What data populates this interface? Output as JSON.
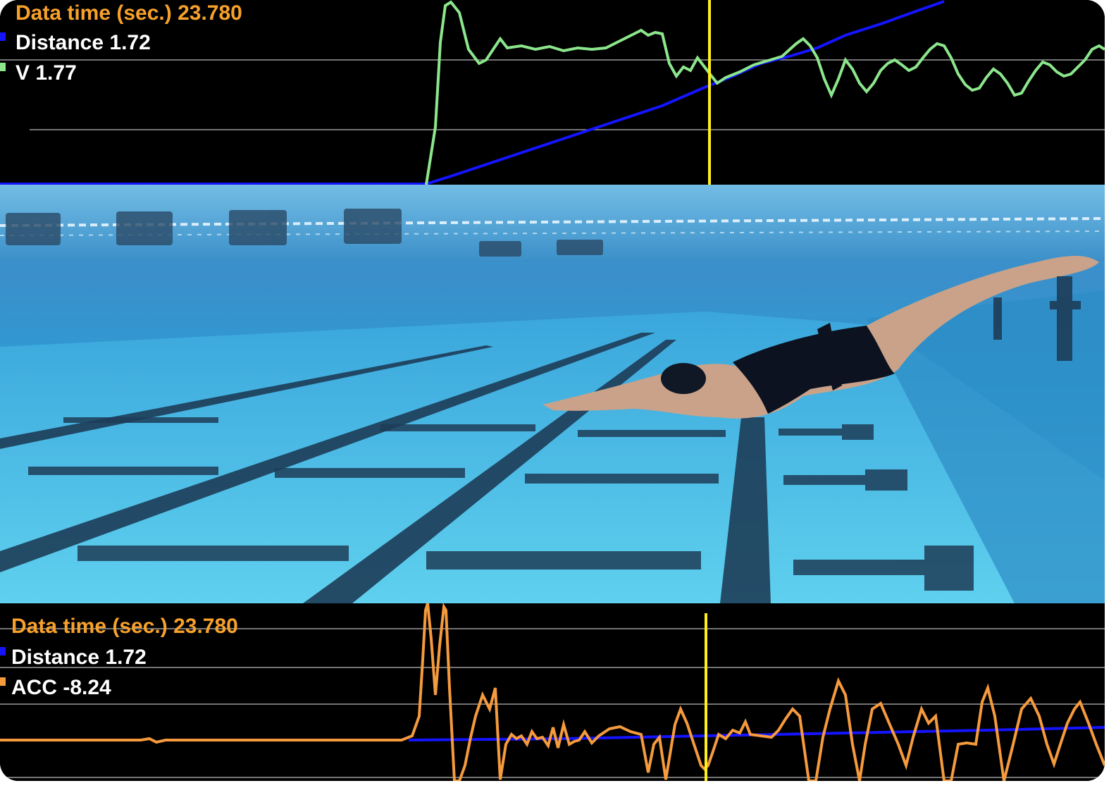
{
  "top_panel": {
    "time_label": "Data time (sec.)",
    "time_value": "23.780",
    "distance_label": "Distance",
    "distance_value": "1.72",
    "velocity_label": "V",
    "velocity_value": "1.77",
    "colors": {
      "distance": "#1414ff",
      "velocity": "#8ce68c",
      "cursor": "#ffef1a",
      "time_text": "#f7a12b"
    }
  },
  "bottom_panel": {
    "time_label": "Data time (sec.)",
    "time_value": "23.780",
    "distance_label": "Distance",
    "distance_value": "1.72",
    "acc_label": "ACC",
    "acc_value": "-8.24",
    "colors": {
      "distance": "#1414ff",
      "acceleration": "#f59a3d",
      "cursor": "#ffef1a",
      "time_text": "#f7a12b"
    }
  },
  "video": {
    "scene": "underwater-pool-swimmer"
  }
}
